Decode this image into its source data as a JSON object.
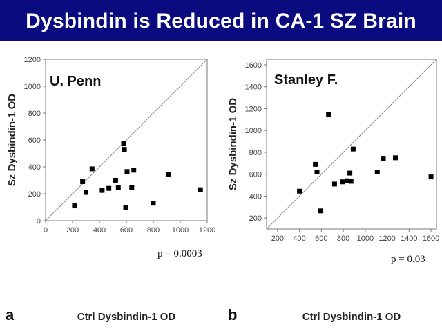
{
  "slide": {
    "title": "Dysbindin is Reduced in CA-1 SZ Brain",
    "banner_color": "#0b0b80"
  },
  "chart_data": [
    {
      "type": "scatter",
      "panel_label": "a",
      "panel_title": "U. Penn",
      "annotation": "p = 0.0003",
      "xlabel": "Ctrl Dysbindin-1 OD",
      "ylabel": "Sz Dysbindin-1 OD",
      "xlim": [
        0,
        1200
      ],
      "ylim": [
        0,
        1200
      ],
      "xticks": [
        0,
        200,
        400,
        600,
        800,
        1000,
        1200
      ],
      "yticks": [
        0,
        200,
        400,
        600,
        800,
        1000,
        1200
      ],
      "diagonal": "identity line",
      "points": [
        {
          "x": 215,
          "y": 110
        },
        {
          "x": 275,
          "y": 290
        },
        {
          "x": 300,
          "y": 210
        },
        {
          "x": 345,
          "y": 385
        },
        {
          "x": 420,
          "y": 225
        },
        {
          "x": 470,
          "y": 240
        },
        {
          "x": 520,
          "y": 300
        },
        {
          "x": 540,
          "y": 245
        },
        {
          "x": 580,
          "y": 575
        },
        {
          "x": 585,
          "y": 530
        },
        {
          "x": 595,
          "y": 100
        },
        {
          "x": 605,
          "y": 365
        },
        {
          "x": 640,
          "y": 245
        },
        {
          "x": 655,
          "y": 375
        },
        {
          "x": 800,
          "y": 130
        },
        {
          "x": 910,
          "y": 345
        },
        {
          "x": 1150,
          "y": 230
        }
      ]
    },
    {
      "type": "scatter",
      "panel_label": "b",
      "panel_title": "Stanley F.",
      "annotation": "p = 0.03",
      "xlabel": "Ctrl Dysbindin-1 OD",
      "ylabel": "Sz Dysbindin-1 OD",
      "xlim": [
        100,
        1650
      ],
      "ylim": [
        100,
        1650
      ],
      "xticks": [
        200,
        400,
        600,
        800,
        1000,
        1200,
        1400,
        1600
      ],
      "yticks": [
        200,
        400,
        600,
        800,
        1000,
        1200,
        1400,
        1600
      ],
      "diagonal": "identity line",
      "points": [
        {
          "x": 400,
          "y": 445
        },
        {
          "x": 545,
          "y": 690
        },
        {
          "x": 560,
          "y": 620
        },
        {
          "x": 595,
          "y": 265
        },
        {
          "x": 665,
          "y": 1145
        },
        {
          "x": 720,
          "y": 510
        },
        {
          "x": 795,
          "y": 530
        },
        {
          "x": 835,
          "y": 540
        },
        {
          "x": 860,
          "y": 610
        },
        {
          "x": 870,
          "y": 535
        },
        {
          "x": 890,
          "y": 830
        },
        {
          "x": 1110,
          "y": 620
        },
        {
          "x": 1165,
          "y": 745
        },
        {
          "x": 1165,
          "y": 740
        },
        {
          "x": 1275,
          "y": 750
        },
        {
          "x": 1600,
          "y": 575
        }
      ]
    }
  ]
}
